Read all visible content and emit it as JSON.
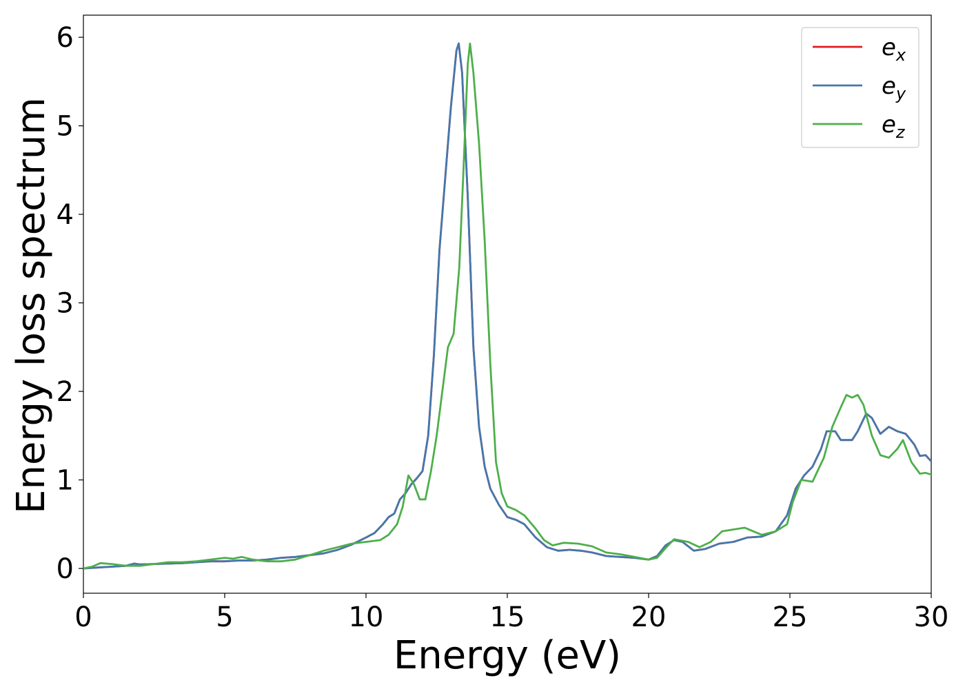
{
  "chart_data": {
    "type": "line",
    "title": "",
    "xlabel": "Energy (eV)",
    "ylabel": "Energy loss spectrum",
    "xlim": [
      0,
      30
    ],
    "ylim": [
      -0.28,
      6.25
    ],
    "xticks": [
      0,
      5,
      10,
      15,
      20,
      25,
      30
    ],
    "yticks": [
      0,
      1,
      2,
      3,
      4,
      5,
      6
    ],
    "grid": false,
    "legend_position": "top-right",
    "series": [
      {
        "name": "e_x",
        "legend": {
          "base": "e",
          "sub": "x"
        },
        "color": "#e41a1c",
        "points": [
          [
            0,
            0.0
          ],
          [
            0.5,
            0.01
          ],
          [
            1,
            0.02
          ],
          [
            1.5,
            0.03
          ],
          [
            1.8,
            0.055
          ],
          [
            2,
            0.045
          ],
          [
            2.5,
            0.05
          ],
          [
            3,
            0.055
          ],
          [
            3.5,
            0.06
          ],
          [
            4,
            0.07
          ],
          [
            4.5,
            0.08
          ],
          [
            5,
            0.08
          ],
          [
            5.5,
            0.09
          ],
          [
            6,
            0.09
          ],
          [
            6.5,
            0.1
          ],
          [
            7,
            0.12
          ],
          [
            7.5,
            0.13
          ],
          [
            8,
            0.15
          ],
          [
            8.5,
            0.17
          ],
          [
            9,
            0.21
          ],
          [
            9.5,
            0.27
          ],
          [
            10,
            0.35
          ],
          [
            10.3,
            0.4
          ],
          [
            10.6,
            0.5
          ],
          [
            10.8,
            0.58
          ],
          [
            11,
            0.62
          ],
          [
            11.2,
            0.78
          ],
          [
            11.4,
            0.85
          ],
          [
            11.6,
            0.95
          ],
          [
            11.8,
            1.02
          ],
          [
            12,
            1.1
          ],
          [
            12.2,
            1.5
          ],
          [
            12.4,
            2.4
          ],
          [
            12.6,
            3.6
          ],
          [
            12.8,
            4.4
          ],
          [
            13,
            5.2
          ],
          [
            13.2,
            5.85
          ],
          [
            13.28,
            5.93
          ],
          [
            13.4,
            5.6
          ],
          [
            13.6,
            4.2
          ],
          [
            13.8,
            2.5
          ],
          [
            14,
            1.6
          ],
          [
            14.2,
            1.15
          ],
          [
            14.4,
            0.9
          ],
          [
            14.7,
            0.72
          ],
          [
            15,
            0.58
          ],
          [
            15.3,
            0.55
          ],
          [
            15.6,
            0.5
          ],
          [
            16,
            0.35
          ],
          [
            16.4,
            0.24
          ],
          [
            16.8,
            0.2
          ],
          [
            17.2,
            0.21
          ],
          [
            17.6,
            0.2
          ],
          [
            18,
            0.18
          ],
          [
            18.5,
            0.14
          ],
          [
            19,
            0.13
          ],
          [
            19.5,
            0.12
          ],
          [
            20,
            0.1
          ],
          [
            20.3,
            0.14
          ],
          [
            20.6,
            0.26
          ],
          [
            20.9,
            0.32
          ],
          [
            21.2,
            0.3
          ],
          [
            21.6,
            0.2
          ],
          [
            22,
            0.22
          ],
          [
            22.5,
            0.28
          ],
          [
            23,
            0.3
          ],
          [
            23.5,
            0.35
          ],
          [
            24,
            0.36
          ],
          [
            24.5,
            0.42
          ],
          [
            24.9,
            0.6
          ],
          [
            25.2,
            0.9
          ],
          [
            25.5,
            1.05
          ],
          [
            25.8,
            1.15
          ],
          [
            26.1,
            1.35
          ],
          [
            26.3,
            1.55
          ],
          [
            26.6,
            1.55
          ],
          [
            26.8,
            1.45
          ],
          [
            27.2,
            1.45
          ],
          [
            27.4,
            1.55
          ],
          [
            27.7,
            1.75
          ],
          [
            27.9,
            1.7
          ],
          [
            28.2,
            1.52
          ],
          [
            28.5,
            1.6
          ],
          [
            28.8,
            1.55
          ],
          [
            29.1,
            1.52
          ],
          [
            29.4,
            1.4
          ],
          [
            29.6,
            1.27
          ],
          [
            29.8,
            1.28
          ],
          [
            30,
            1.21
          ]
        ]
      },
      {
        "name": "e_y",
        "legend": {
          "base": "e",
          "sub": "y"
        },
        "color": "#4378ad",
        "points": [
          [
            0,
            0.0
          ],
          [
            0.5,
            0.01
          ],
          [
            1,
            0.02
          ],
          [
            1.5,
            0.03
          ],
          [
            1.8,
            0.055
          ],
          [
            2,
            0.045
          ],
          [
            2.5,
            0.05
          ],
          [
            3,
            0.055
          ],
          [
            3.5,
            0.06
          ],
          [
            4,
            0.07
          ],
          [
            4.5,
            0.08
          ],
          [
            5,
            0.08
          ],
          [
            5.5,
            0.09
          ],
          [
            6,
            0.09
          ],
          [
            6.5,
            0.1
          ],
          [
            7,
            0.12
          ],
          [
            7.5,
            0.13
          ],
          [
            8,
            0.15
          ],
          [
            8.5,
            0.17
          ],
          [
            9,
            0.21
          ],
          [
            9.5,
            0.27
          ],
          [
            10,
            0.35
          ],
          [
            10.3,
            0.4
          ],
          [
            10.6,
            0.5
          ],
          [
            10.8,
            0.58
          ],
          [
            11,
            0.62
          ],
          [
            11.2,
            0.78
          ],
          [
            11.4,
            0.85
          ],
          [
            11.6,
            0.95
          ],
          [
            11.8,
            1.02
          ],
          [
            12,
            1.1
          ],
          [
            12.2,
            1.5
          ],
          [
            12.4,
            2.4
          ],
          [
            12.6,
            3.6
          ],
          [
            12.8,
            4.4
          ],
          [
            13,
            5.2
          ],
          [
            13.2,
            5.85
          ],
          [
            13.28,
            5.93
          ],
          [
            13.4,
            5.6
          ],
          [
            13.6,
            4.2
          ],
          [
            13.8,
            2.5
          ],
          [
            14,
            1.6
          ],
          [
            14.2,
            1.15
          ],
          [
            14.4,
            0.9
          ],
          [
            14.7,
            0.72
          ],
          [
            15,
            0.58
          ],
          [
            15.3,
            0.55
          ],
          [
            15.6,
            0.5
          ],
          [
            16,
            0.35
          ],
          [
            16.4,
            0.24
          ],
          [
            16.8,
            0.2
          ],
          [
            17.2,
            0.21
          ],
          [
            17.6,
            0.2
          ],
          [
            18,
            0.18
          ],
          [
            18.5,
            0.14
          ],
          [
            19,
            0.13
          ],
          [
            19.5,
            0.12
          ],
          [
            20,
            0.1
          ],
          [
            20.3,
            0.14
          ],
          [
            20.6,
            0.26
          ],
          [
            20.9,
            0.32
          ],
          [
            21.2,
            0.3
          ],
          [
            21.6,
            0.2
          ],
          [
            22,
            0.22
          ],
          [
            22.5,
            0.28
          ],
          [
            23,
            0.3
          ],
          [
            23.5,
            0.35
          ],
          [
            24,
            0.36
          ],
          [
            24.5,
            0.42
          ],
          [
            24.9,
            0.6
          ],
          [
            25.2,
            0.9
          ],
          [
            25.5,
            1.05
          ],
          [
            25.8,
            1.15
          ],
          [
            26.1,
            1.35
          ],
          [
            26.3,
            1.55
          ],
          [
            26.6,
            1.55
          ],
          [
            26.8,
            1.45
          ],
          [
            27.2,
            1.45
          ],
          [
            27.4,
            1.55
          ],
          [
            27.7,
            1.75
          ],
          [
            27.9,
            1.7
          ],
          [
            28.2,
            1.52
          ],
          [
            28.5,
            1.6
          ],
          [
            28.8,
            1.55
          ],
          [
            29.1,
            1.52
          ],
          [
            29.4,
            1.4
          ],
          [
            29.6,
            1.27
          ],
          [
            29.8,
            1.28
          ],
          [
            30,
            1.21
          ]
        ]
      },
      {
        "name": "e_z",
        "legend": {
          "base": "e",
          "sub": "z"
        },
        "color": "#4daf4a",
        "points": [
          [
            0,
            0.0
          ],
          [
            0.3,
            0.02
          ],
          [
            0.6,
            0.06
          ],
          [
            1,
            0.05
          ],
          [
            1.5,
            0.03
          ],
          [
            2,
            0.03
          ],
          [
            2.5,
            0.05
          ],
          [
            3,
            0.07
          ],
          [
            3.5,
            0.07
          ],
          [
            4,
            0.08
          ],
          [
            4.5,
            0.1
          ],
          [
            5,
            0.12
          ],
          [
            5.3,
            0.11
          ],
          [
            5.6,
            0.13
          ],
          [
            6,
            0.1
          ],
          [
            6.5,
            0.08
          ],
          [
            7,
            0.08
          ],
          [
            7.5,
            0.1
          ],
          [
            8,
            0.15
          ],
          [
            8.5,
            0.2
          ],
          [
            9,
            0.24
          ],
          [
            9.5,
            0.28
          ],
          [
            10,
            0.3
          ],
          [
            10.5,
            0.32
          ],
          [
            10.8,
            0.38
          ],
          [
            11.1,
            0.5
          ],
          [
            11.3,
            0.7
          ],
          [
            11.5,
            1.05
          ],
          [
            11.7,
            0.95
          ],
          [
            11.9,
            0.78
          ],
          [
            12.1,
            0.78
          ],
          [
            12.3,
            1.1
          ],
          [
            12.5,
            1.5
          ],
          [
            12.7,
            2.0
          ],
          [
            12.9,
            2.5
          ],
          [
            13.1,
            2.65
          ],
          [
            13.3,
            3.4
          ],
          [
            13.45,
            4.5
          ],
          [
            13.6,
            5.7
          ],
          [
            13.68,
            5.93
          ],
          [
            13.8,
            5.6
          ],
          [
            14,
            4.8
          ],
          [
            14.2,
            3.7
          ],
          [
            14.4,
            2.3
          ],
          [
            14.6,
            1.2
          ],
          [
            14.8,
            0.85
          ],
          [
            15,
            0.7
          ],
          [
            15.3,
            0.66
          ],
          [
            15.6,
            0.6
          ],
          [
            16,
            0.45
          ],
          [
            16.3,
            0.32
          ],
          [
            16.6,
            0.26
          ],
          [
            17,
            0.29
          ],
          [
            17.5,
            0.28
          ],
          [
            18,
            0.25
          ],
          [
            18.5,
            0.18
          ],
          [
            19,
            0.16
          ],
          [
            19.5,
            0.13
          ],
          [
            20,
            0.1
          ],
          [
            20.3,
            0.12
          ],
          [
            20.6,
            0.23
          ],
          [
            20.9,
            0.33
          ],
          [
            21.4,
            0.3
          ],
          [
            21.8,
            0.24
          ],
          [
            22.2,
            0.3
          ],
          [
            22.6,
            0.42
          ],
          [
            23,
            0.44
          ],
          [
            23.4,
            0.46
          ],
          [
            23.7,
            0.42
          ],
          [
            24,
            0.38
          ],
          [
            24.5,
            0.42
          ],
          [
            24.9,
            0.5
          ],
          [
            25.1,
            0.75
          ],
          [
            25.4,
            1.0
          ],
          [
            25.8,
            0.98
          ],
          [
            26.2,
            1.25
          ],
          [
            26.5,
            1.6
          ],
          [
            26.8,
            1.82
          ],
          [
            27,
            1.96
          ],
          [
            27.2,
            1.93
          ],
          [
            27.4,
            1.96
          ],
          [
            27.6,
            1.85
          ],
          [
            27.9,
            1.5
          ],
          [
            28.2,
            1.28
          ],
          [
            28.5,
            1.25
          ],
          [
            28.8,
            1.35
          ],
          [
            29,
            1.45
          ],
          [
            29.3,
            1.2
          ],
          [
            29.6,
            1.07
          ],
          [
            29.8,
            1.08
          ],
          [
            30,
            1.06
          ]
        ]
      }
    ]
  }
}
